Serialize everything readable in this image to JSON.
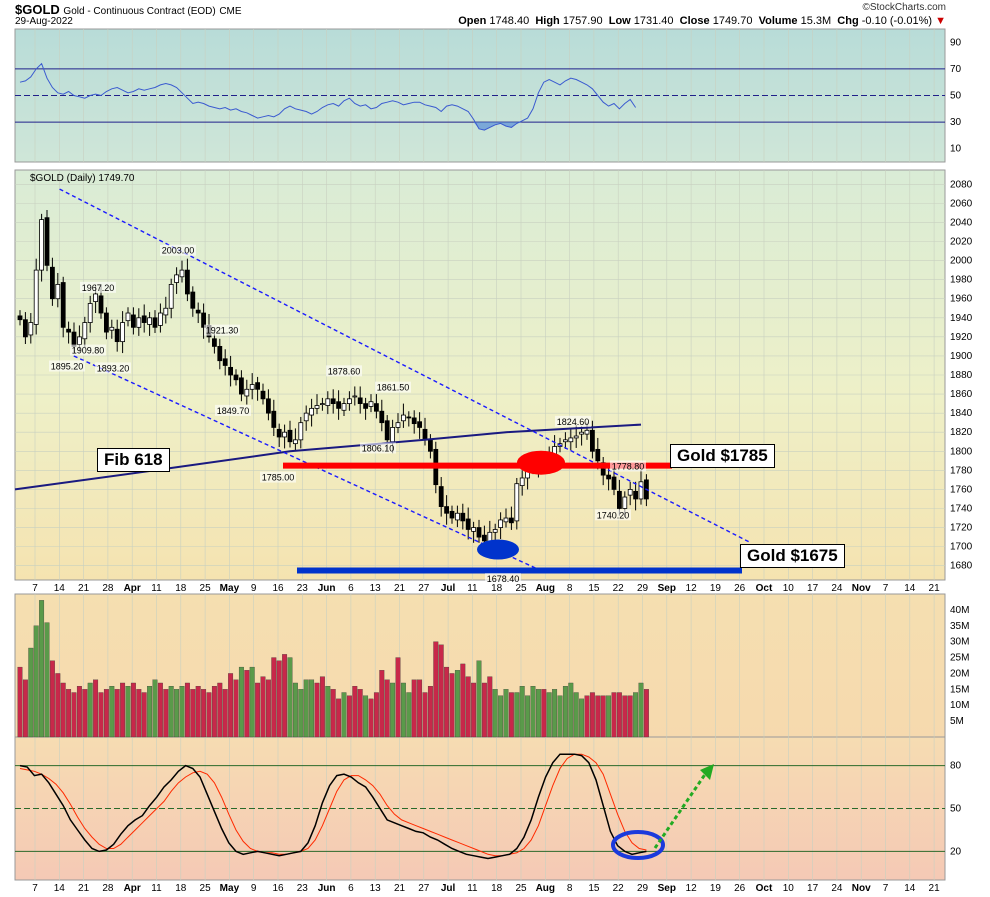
{
  "header": {
    "ticker": "$GOLD",
    "description": "Gold - Continuous Contract (EOD)",
    "exchange": "CME",
    "date": "29-Aug-2022",
    "credit": "©StockCharts.com",
    "open_label": "Open",
    "open": "1748.40",
    "high_label": "High",
    "high": "1757.90",
    "low_label": "Low",
    "low": "1731.40",
    "close_label": "Close",
    "close": "1749.70",
    "volume_label": "Volume",
    "volume": "15.3M",
    "chg_label": "Chg",
    "chg": "-0.10 (-0.01%)"
  },
  "callouts": {
    "fib": "Fib 618",
    "gold1785": "Gold $1785",
    "gold1675": "Gold $1675"
  },
  "colors": {
    "up": "#000000",
    "down": "#000000",
    "resistance": "#ff0000",
    "support": "#0033cc",
    "channel": "#1a1aff",
    "ma": "#1a1a80",
    "vol_up": "#5a9a4a",
    "vol_down": "#c8284a",
    "stoch_k": "#000000",
    "stoch_d": "#ff2a00",
    "arrow": "#22aa22"
  },
  "chart_data": {
    "type": "candlestick",
    "price_label": "$GOLD (Daily) 1749.70",
    "x_tick_labels": [
      "7",
      "14",
      "21",
      "28",
      "Apr",
      "11",
      "18",
      "25",
      "May",
      "9",
      "16",
      "23",
      "Jun",
      "6",
      "13",
      "21",
      "27",
      "Jul",
      "11",
      "18",
      "25",
      "Aug",
      "8",
      "15",
      "22",
      "29",
      "Sep",
      "12",
      "19",
      "26",
      "Oct",
      "10",
      "17",
      "24",
      "Nov",
      "7",
      "14",
      "21"
    ],
    "rsi": {
      "yticks": [
        10,
        30,
        50,
        70,
        90
      ],
      "levels": [
        30,
        50,
        70
      ],
      "values": [
        60,
        61,
        64,
        70,
        74,
        63,
        56,
        52,
        51,
        53,
        50,
        49,
        48,
        50,
        51,
        50,
        53,
        55,
        56,
        54,
        52,
        53,
        55,
        54,
        55,
        56,
        58,
        59,
        58,
        56,
        52,
        48,
        44,
        45,
        44,
        42,
        41,
        40,
        41,
        39,
        40,
        38,
        37,
        35,
        33,
        34,
        35,
        34,
        36,
        40,
        42,
        40,
        39,
        38,
        36,
        38,
        41,
        43,
        44,
        42,
        46,
        48,
        44,
        42,
        43,
        40,
        41,
        44,
        45,
        46,
        45,
        43,
        44,
        45,
        45,
        43,
        42,
        41,
        38,
        42,
        43,
        42,
        40,
        38,
        32,
        25,
        24,
        26,
        28,
        29,
        27,
        26,
        29,
        31,
        33,
        40,
        52,
        60,
        62,
        60,
        58,
        61,
        63,
        62,
        60,
        58,
        55,
        50,
        45,
        42,
        44,
        40,
        44,
        47,
        41
      ]
    },
    "price": {
      "ylim": [
        1665,
        2095
      ],
      "yticks": [
        1680,
        1700,
        1720,
        1740,
        1760,
        1780,
        1800,
        1820,
        1840,
        1860,
        1880,
        1900,
        1920,
        1940,
        1960,
        1980,
        2000,
        2020,
        2040,
        2060,
        2080
      ],
      "closes": [
        1938,
        1920,
        1935,
        1990,
        2043,
        1995,
        1960,
        1975,
        1930,
        1925,
        1910,
        1920,
        1935,
        1955,
        1965,
        1945,
        1925,
        1930,
        1915,
        1935,
        1945,
        1930,
        1940,
        1935,
        1940,
        1930,
        1945,
        1950,
        1975,
        1985,
        1990,
        1965,
        1950,
        1945,
        1930,
        1920,
        1910,
        1895,
        1890,
        1880,
        1875,
        1860,
        1865,
        1870,
        1865,
        1855,
        1840,
        1825,
        1815,
        1820,
        1810,
        1812,
        1830,
        1840,
        1845,
        1848,
        1850,
        1855,
        1850,
        1845,
        1850,
        1855,
        1858,
        1850,
        1845,
        1852,
        1842,
        1830,
        1812,
        1825,
        1830,
        1838,
        1835,
        1829,
        1825,
        1812,
        1800,
        1765,
        1742,
        1735,
        1730,
        1735,
        1727,
        1718,
        1720,
        1710,
        1706,
        1715,
        1718,
        1728,
        1730,
        1725,
        1766,
        1772,
        1780,
        1782,
        1790,
        1785,
        1795,
        1805,
        1808,
        1812,
        1814,
        1816,
        1820,
        1822,
        1800,
        1790,
        1775,
        1771,
        1760,
        1740,
        1752,
        1760,
        1750,
        1768,
        1750
      ],
      "highs_labeled": [
        {
          "label": "2003.00",
          "value": 2003
        },
        {
          "label": "1967.20",
          "value": 1967.2
        },
        {
          "label": "1921.30",
          "value": 1921.3
        },
        {
          "label": "1878.60",
          "value": 1878.6
        },
        {
          "label": "1861.50",
          "value": 1861.5
        },
        {
          "label": "1824.60",
          "value": 1824.6
        },
        {
          "label": "1778.80",
          "value": 1778.8
        }
      ],
      "lows_labeled": [
        {
          "label": "1909.80",
          "value": 1909.8
        },
        {
          "label": "1895.20",
          "value": 1895.2
        },
        {
          "label": "1893.20",
          "value": 1893.2
        },
        {
          "label": "1849.70",
          "value": 1849.7
        },
        {
          "label": "1806.10",
          "value": 1806.1
        },
        {
          "label": "1785.00",
          "value": 1785
        },
        {
          "label": "1678.40",
          "value": 1678.4
        },
        {
          "label": "1740.20",
          "value": 1740.2
        }
      ],
      "horizontal_levels": [
        {
          "name": "resistance",
          "value": 1785
        },
        {
          "name": "support",
          "value": 1675
        }
      ],
      "moving_average": [
        {
          "t": 0,
          "v": 1760
        },
        {
          "t": 25,
          "v": 1780
        },
        {
          "t": 50,
          "v": 1800
        },
        {
          "t": 75,
          "v": 1812
        },
        {
          "t": 90,
          "v": 1820
        },
        {
          "t": 115,
          "v": 1828
        }
      ],
      "channel_upper": [
        {
          "t": 4,
          "v": 2075
        },
        {
          "t": 135,
          "v": 1705
        }
      ],
      "channel_lower": [
        {
          "t": 7,
          "v": 1900
        },
        {
          "t": 95,
          "v": 1673
        }
      ]
    },
    "volume": {
      "yticks_labels": [
        "5M",
        "10M",
        "15M",
        "20M",
        "25M",
        "30M",
        "35M",
        "40M"
      ],
      "yticks_values": [
        5,
        10,
        15,
        20,
        25,
        30,
        35,
        40
      ],
      "ylim": [
        0,
        45
      ],
      "values": [
        22,
        18,
        28,
        35,
        43,
        36,
        24,
        20,
        17,
        15,
        14,
        16,
        15,
        17,
        18,
        14,
        15,
        16,
        15,
        17,
        16,
        17,
        15,
        14,
        16,
        18,
        17,
        15,
        16,
        15,
        16,
        17,
        15,
        16,
        15,
        14,
        16,
        17,
        15,
        20,
        18,
        22,
        21,
        22,
        17,
        19,
        18,
        25,
        24,
        26,
        25,
        17,
        15,
        18,
        18,
        17,
        19,
        16,
        15,
        12,
        14,
        13,
        16,
        15,
        13,
        12,
        14,
        21,
        18,
        17,
        25,
        17,
        14,
        18,
        18,
        14,
        16,
        30,
        29,
        22,
        20,
        21,
        23,
        19,
        17,
        24,
        17,
        19,
        15,
        13,
        15,
        14,
        14,
        16,
        13,
        16,
        15,
        15,
        14,
        15,
        13,
        16,
        17,
        14,
        12,
        13,
        14,
        13,
        13,
        13,
        14,
        14,
        13,
        13,
        14,
        17,
        15
      ],
      "up_flags": [
        0,
        0,
        1,
        1,
        1,
        1,
        0,
        0,
        0,
        0,
        0,
        0,
        0,
        1,
        0,
        0,
        0,
        1,
        0,
        0,
        1,
        0,
        0,
        0,
        1,
        1,
        0,
        0,
        1,
        1,
        1,
        0,
        0,
        0,
        0,
        0,
        0,
        0,
        0,
        0,
        0,
        1,
        0,
        1,
        0,
        0,
        0,
        0,
        0,
        0,
        1,
        1,
        1,
        1,
        1,
        0,
        0,
        1,
        0,
        0,
        1,
        0,
        0,
        0,
        1,
        0,
        0,
        0,
        0,
        1,
        0,
        1,
        1,
        0,
        0,
        0,
        0,
        0,
        0,
        0,
        0,
        1,
        0,
        0,
        0,
        1,
        0,
        0,
        1,
        1,
        1,
        0,
        1,
        1,
        1,
        1,
        1,
        0,
        1,
        1,
        1,
        1,
        1,
        1,
        1,
        0,
        0,
        0,
        0,
        1,
        0,
        0,
        0,
        0,
        1,
        1,
        0
      ]
    },
    "stochastic": {
      "yticks": [
        20,
        50,
        80
      ],
      "levels": [
        20,
        50,
        80
      ],
      "k": [
        80,
        79,
        73,
        74,
        68,
        60,
        52,
        42,
        35,
        28,
        22,
        20,
        21,
        25,
        32,
        38,
        42,
        45,
        52,
        58,
        65,
        70,
        76,
        80,
        78,
        72,
        60,
        48,
        36,
        26,
        20,
        18,
        19,
        20,
        19,
        18,
        17,
        18,
        19,
        20,
        26,
        38,
        54,
        66,
        73,
        74,
        72,
        68,
        65,
        58,
        50,
        42,
        40,
        38,
        36,
        34,
        33,
        30,
        28,
        25,
        22,
        20,
        18,
        17,
        16,
        15,
        16,
        17,
        18,
        22,
        30,
        42,
        58,
        72,
        82,
        88,
        88,
        88,
        87,
        82,
        70,
        52,
        34,
        24,
        20,
        18,
        19,
        20
      ],
      "d": [
        78,
        77,
        76,
        74,
        71,
        67,
        61,
        53,
        44,
        36,
        30,
        25,
        22,
        22,
        25,
        30,
        35,
        40,
        45,
        50,
        55,
        62,
        68,
        72,
        75,
        76,
        74,
        68,
        58,
        46,
        35,
        27,
        22,
        20,
        19,
        19,
        18,
        18,
        19,
        20,
        22,
        28,
        38,
        50,
        62,
        70,
        73,
        73,
        70,
        66,
        60,
        52,
        46,
        42,
        40,
        38,
        36,
        34,
        32,
        30,
        28,
        26,
        24,
        22,
        20,
        18,
        17,
        17,
        18,
        19,
        22,
        28,
        38,
        52,
        66,
        78,
        85,
        88,
        88,
        86,
        82,
        74,
        60,
        46,
        34,
        26,
        22,
        21
      ]
    }
  }
}
